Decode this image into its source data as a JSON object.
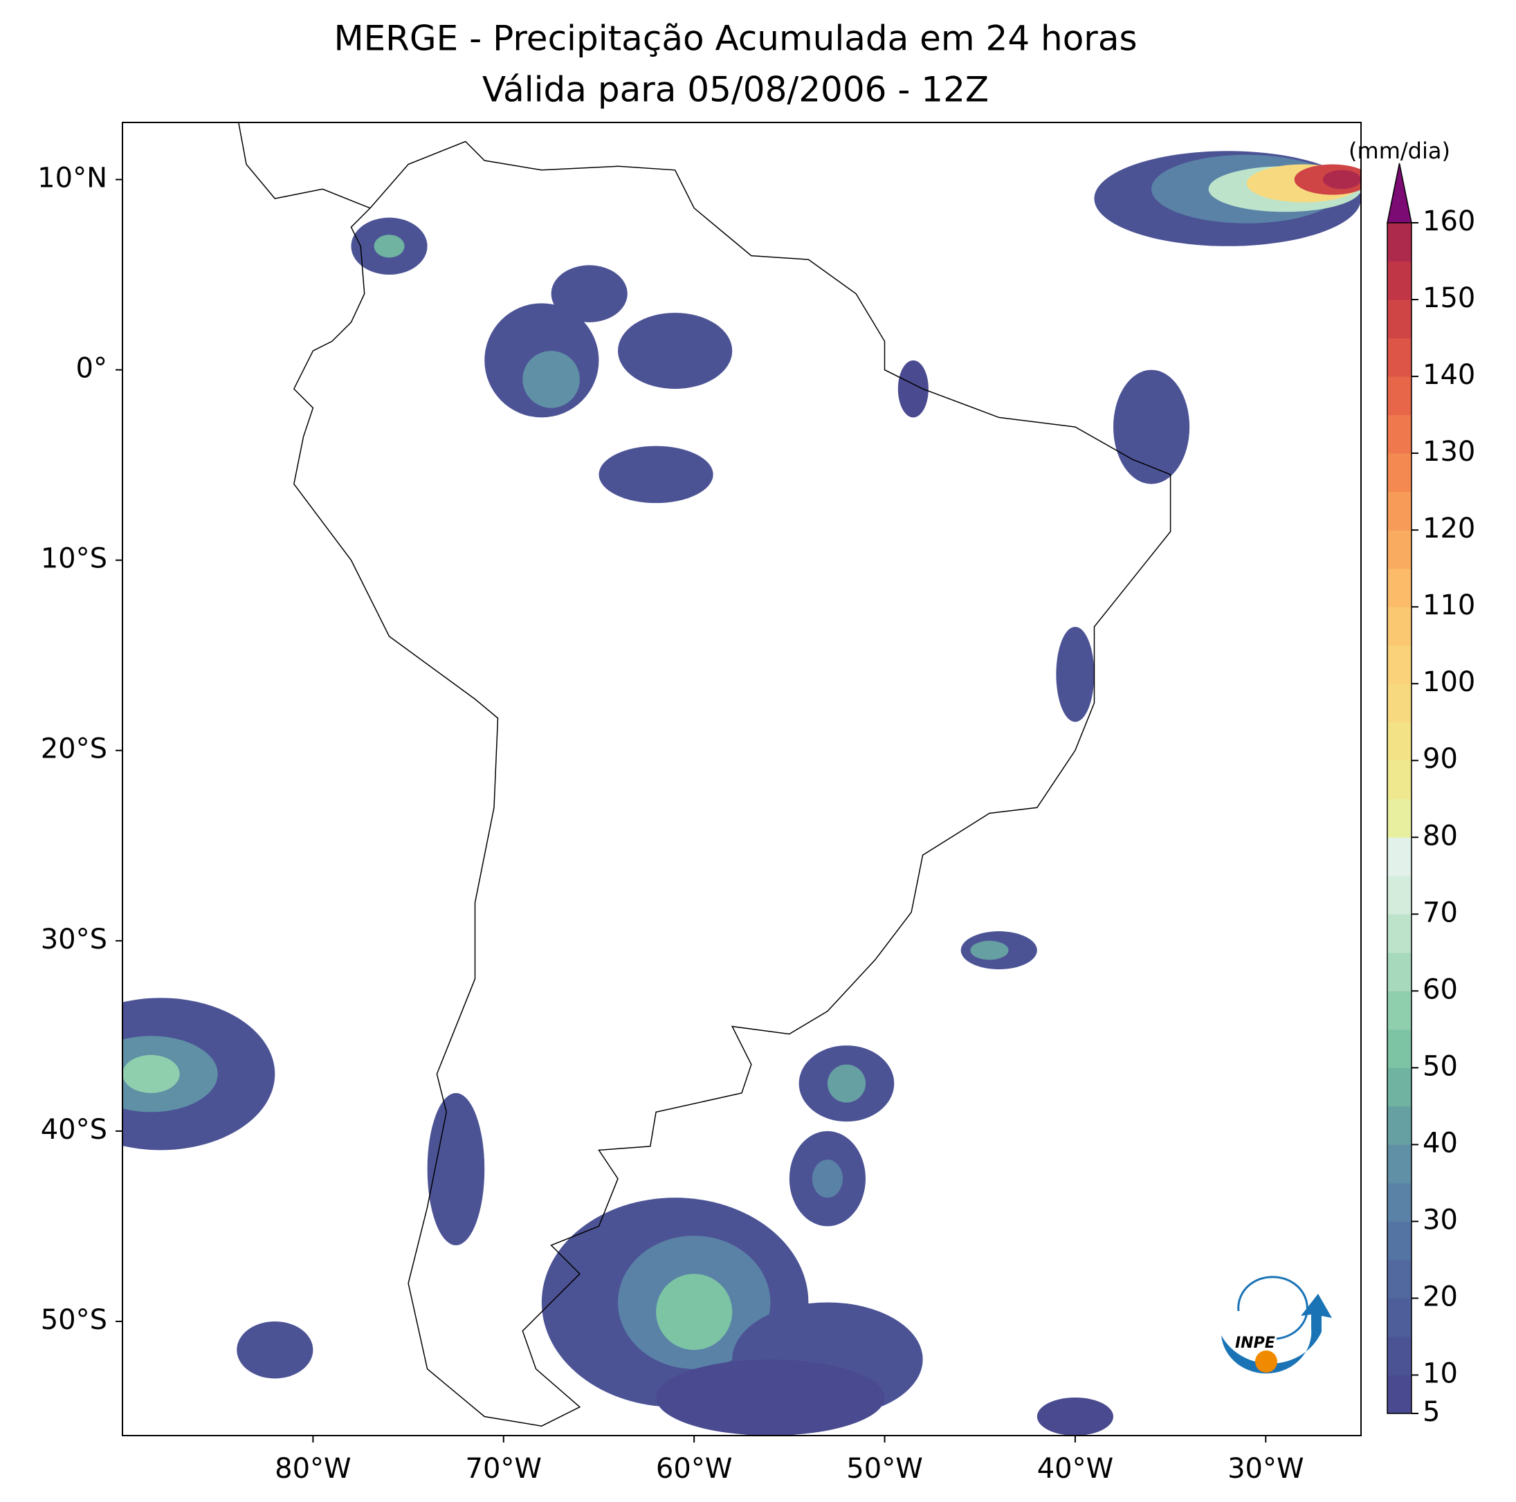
{
  "title": [
    "MERGE - Precipitação Acumulada em 24 horas",
    "Válida para 05/08/2006 - 12Z"
  ],
  "map": {
    "xlim": [
      -90,
      -25
    ],
    "ylim": [
      -56,
      13
    ],
    "xticks": [
      {
        "value": -80,
        "label": "80°W"
      },
      {
        "value": -70,
        "label": "70°W"
      },
      {
        "value": -60,
        "label": "60°W"
      },
      {
        "value": -50,
        "label": "50°W"
      },
      {
        "value": -40,
        "label": "40°W"
      },
      {
        "value": -30,
        "label": "30°W"
      }
    ],
    "yticks": [
      {
        "value": 10,
        "label": "10°N"
      },
      {
        "value": 0,
        "label": "0°"
      },
      {
        "value": -10,
        "label": "10°S"
      },
      {
        "value": -20,
        "label": "20°S"
      },
      {
        "value": -30,
        "label": "30°S"
      },
      {
        "value": -40,
        "label": "40°S"
      },
      {
        "value": -50,
        "label": "50°S"
      }
    ]
  },
  "colorbar": {
    "label": "(mm/dia)",
    "lim": [
      5,
      160
    ],
    "ticks": [
      5,
      10,
      20,
      30,
      40,
      50,
      60,
      70,
      80,
      90,
      100,
      110,
      120,
      130,
      140,
      150,
      160
    ],
    "colors": [
      "#4a4a90",
      "#4c5395",
      "#4e5e9a",
      "#51699f",
      "#5474a3",
      "#5a82a6",
      "#5f90a6",
      "#66a0a3",
      "#6fb3a0",
      "#7cc4a4",
      "#90cfae",
      "#a7d9bc",
      "#bde3cb",
      "#d3ecdc",
      "#e2f1ea",
      "#e8f0a0",
      "#efe88e",
      "#f4e287",
      "#f7da80",
      "#fad27a",
      "#fbc872",
      "#fbbb69",
      "#f9ab60",
      "#f79b58",
      "#f48a52",
      "#ef784d",
      "#e76649",
      "#dc5547",
      "#cf4546",
      "#c03647",
      "#ae2a4c"
    ],
    "extend_color": "#7d0b74"
  },
  "logo_text": "INPE"
}
